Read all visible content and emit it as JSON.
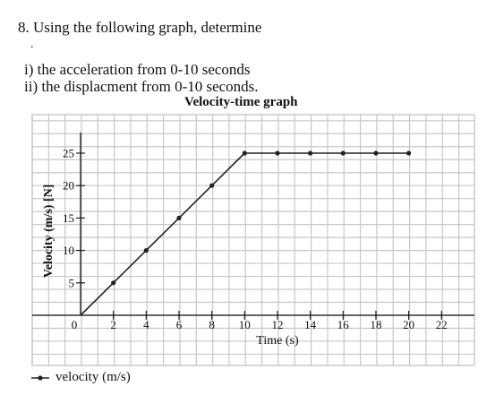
{
  "question": {
    "title": "8. Using the following graph, determine",
    "bullet": ".",
    "part_i": "i) the acceleration from 0-10 seconds",
    "part_ii": "ii) the displacment from 0-10 seconds."
  },
  "chart_data": {
    "type": "line",
    "title": "Velocity-time graph",
    "xlabel": "Time (s)",
    "ylabel": "Velocity (m/s) [N]",
    "xlim": [
      0,
      23
    ],
    "ylim": [
      0,
      27
    ],
    "x_ticks": [
      0,
      2,
      4,
      6,
      8,
      10,
      12,
      14,
      16,
      18,
      20,
      22
    ],
    "y_ticks": [
      0,
      5,
      10,
      15,
      20,
      25
    ],
    "grid": true,
    "legend_position": "bottom-left",
    "series": [
      {
        "name": "velocity (m/s)",
        "color": "#222222",
        "x": [
          0,
          2,
          4,
          6,
          8,
          10,
          12,
          14,
          16,
          18,
          20
        ],
        "values": [
          0,
          5,
          10,
          15,
          20,
          25,
          25,
          25,
          25,
          25,
          25
        ]
      }
    ]
  }
}
